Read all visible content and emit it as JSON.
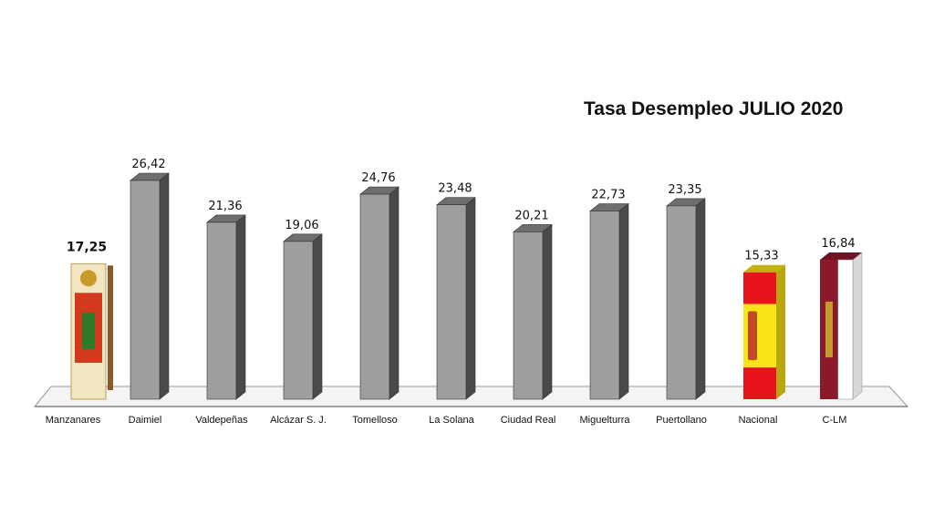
{
  "chart_data": {
    "type": "bar",
    "title": "Tasa Desempleo JULIO 2020",
    "categories": [
      "Manzanares",
      "Daimiel",
      "Valdepeñas",
      "Alcázar S. J.",
      "Tomelloso",
      "La Solana",
      "Ciudad Real",
      "Miguelturra",
      "Puertollano",
      "Nacional",
      "C-LM"
    ],
    "values": [
      17.25,
      26.42,
      21.36,
      19.06,
      24.76,
      23.48,
      20.21,
      22.73,
      23.35,
      15.33,
      16.84
    ],
    "value_labels": [
      "17,25",
      "26,42",
      "21,36",
      "19,06",
      "24,76",
      "23,48",
      "20,21",
      "22,73",
      "23,35",
      "15,33",
      "16,84"
    ],
    "bar_styles": [
      "manzanares-flag",
      "gray",
      "gray",
      "gray",
      "gray",
      "gray",
      "gray",
      "gray",
      "gray",
      "spain-flag",
      "clm-flag"
    ],
    "colors": {
      "bar_front": "#9e9e9e",
      "bar_side": "#4a4a4a",
      "bar_top": "#6e6e6e",
      "spain_red": "#e8141c",
      "spain_yellow": "#f7e51a",
      "clm_crimson": "#8a1a2a"
    },
    "xlabel": "",
    "ylabel": "",
    "ylim": [
      0,
      30
    ],
    "grid": false,
    "legend": "none"
  }
}
